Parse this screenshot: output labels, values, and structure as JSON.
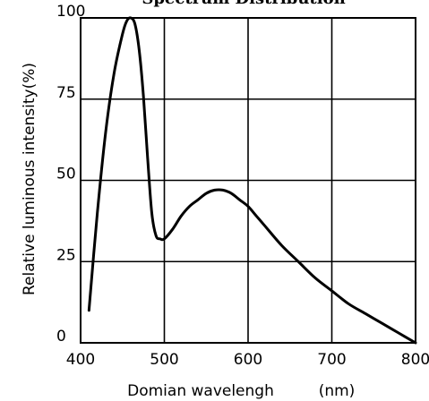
{
  "chart_data": {
    "type": "line",
    "title": "Spectrum Distribution",
    "xlabel": "Domian wavelengh",
    "xunit": "(nm)",
    "ylabel": "Relative luminous intensity(%)",
    "xlim": [
      400,
      800
    ],
    "ylim": [
      0,
      100
    ],
    "x_ticks": [
      "400",
      "500",
      "600",
      "700",
      "800"
    ],
    "y_ticks": [
      "0",
      "25",
      "50",
      "75",
      "100"
    ],
    "grid": true,
    "series": [
      {
        "x": [
          410,
          420,
          430,
          440,
          450,
          455,
          460,
          465,
          470,
          475,
          480,
          485,
          490,
          495,
          500,
          510,
          520,
          530,
          540,
          550,
          560,
          570,
          580,
          590,
          600,
          610,
          620,
          640,
          660,
          680,
          700,
          720,
          740,
          760,
          780,
          800
        ],
        "values": [
          10,
          40,
          65,
          83,
          95,
          99,
          100,
          98,
          90,
          76,
          57,
          40,
          33,
          32,
          32,
          35,
          39,
          42,
          44,
          46,
          47,
          47,
          46,
          44,
          42,
          39,
          36,
          30,
          25,
          20,
          16,
          12,
          9,
          6,
          3,
          0
        ]
      }
    ],
    "line_color": "#000000",
    "grid_color": "#000000"
  }
}
